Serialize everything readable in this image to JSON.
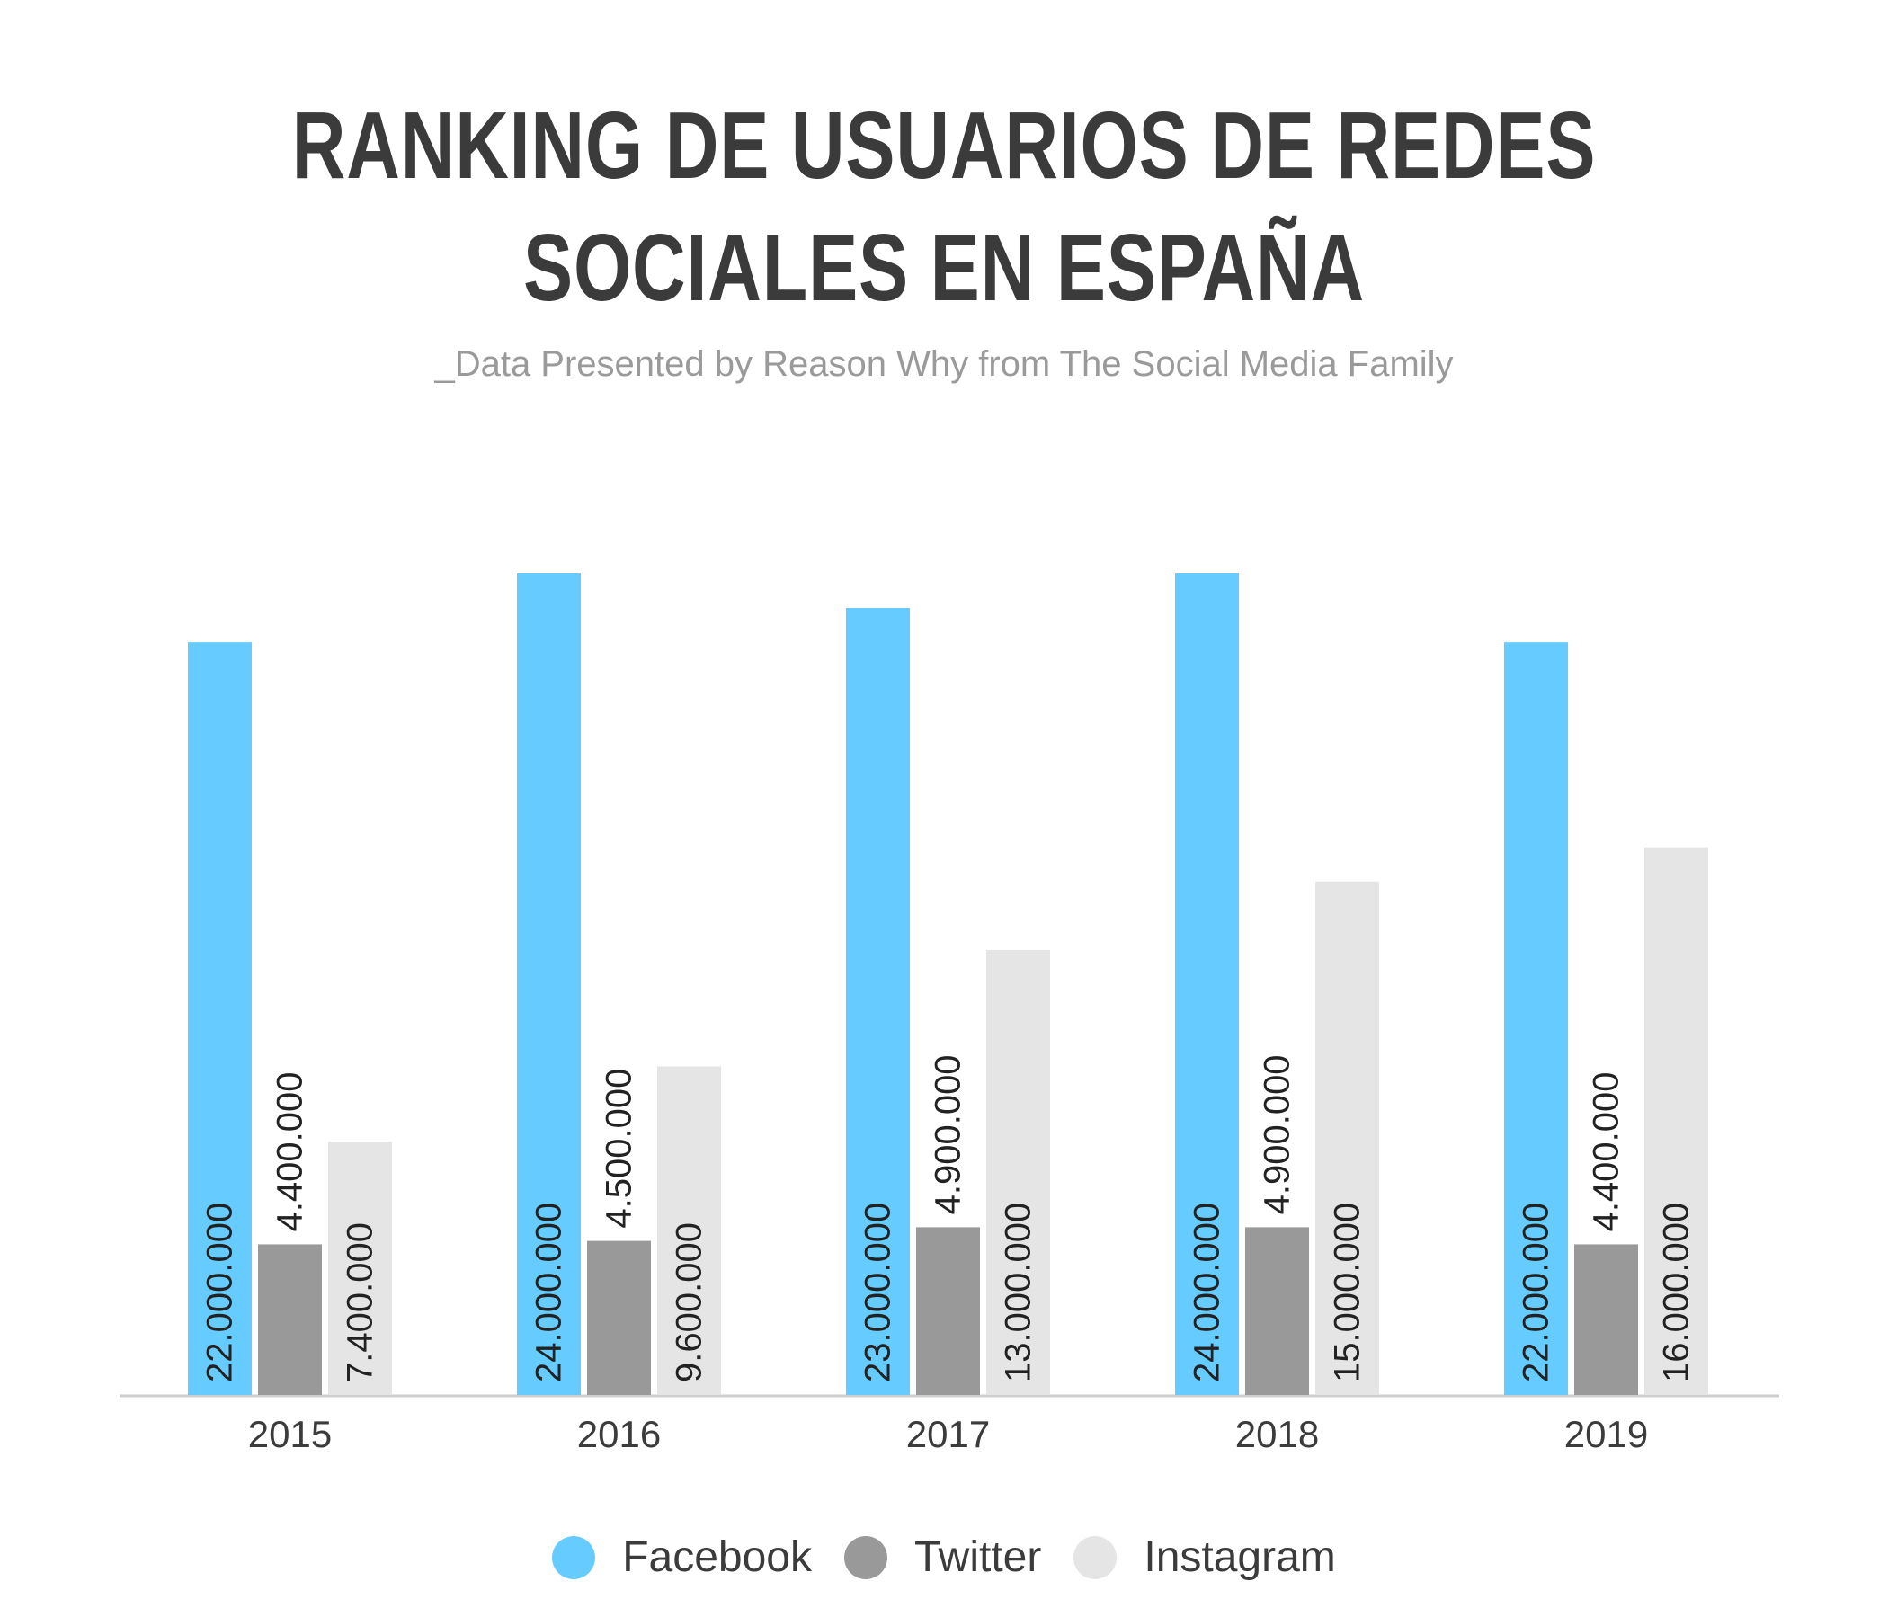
{
  "chart_data": {
    "type": "bar",
    "title_lines": [
      "RANKING DE USUARIOS DE REDES",
      "SOCIALES EN ESPAÑA"
    ],
    "subtitle": "_Data Presented by Reason Why from The Social Media Family",
    "categories": [
      "2015",
      "2016",
      "2017",
      "2018",
      "2019"
    ],
    "series": [
      {
        "name": "Facebook",
        "color": "#66CCFF",
        "values": [
          22000000,
          24000000,
          23000000,
          24000000,
          22000000
        ],
        "labels": [
          "22.000.000",
          "24.000.000",
          "23.000.000",
          "24.000.000",
          "22.000.000"
        ]
      },
      {
        "name": "Twitter",
        "color": "#999999",
        "values": [
          4400000,
          4500000,
          4900000,
          4900000,
          4400000
        ],
        "labels": [
          "4.400.000",
          "4.500.000",
          "4.900.000",
          "4.900.000",
          "4.400.000"
        ]
      },
      {
        "name": "Instagram",
        "color": "#E5E5E5",
        "values": [
          7400000,
          9600000,
          13000000,
          15000000,
          16000000
        ],
        "labels": [
          "7.400.000",
          "9.600.000",
          "13.000.000",
          "15.000.000",
          "16.000.000"
        ]
      }
    ],
    "ylim": [
      0,
      24000000
    ],
    "grid": false,
    "legend_position": "bottom-center",
    "label_color": "#222222"
  }
}
